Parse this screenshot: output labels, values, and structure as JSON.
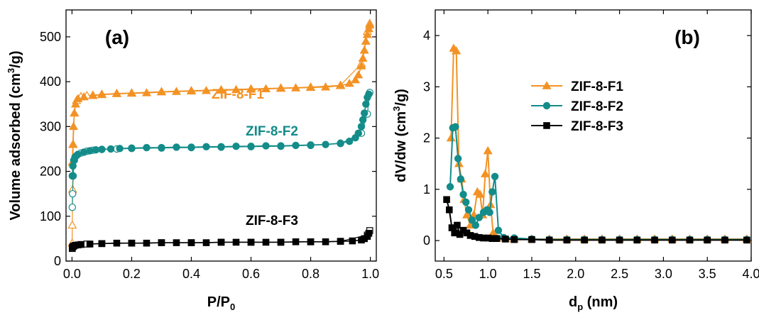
{
  "chart_data": [
    {
      "type": "scatter",
      "panel_label": "(a)",
      "xlabel": "P/P₀",
      "ylabel": "Volume adsorbed (cm³/g)",
      "xlim": [
        -0.02,
        1.02
      ],
      "ylim": [
        0,
        560
      ],
      "xticks": [
        "0.0",
        "0.2",
        "0.4",
        "0.6",
        "0.8",
        "1.0"
      ],
      "xtick_values": [
        0,
        0.2,
        0.4,
        0.6,
        0.8,
        1.0
      ],
      "yticks": [
        "0",
        "100",
        "200",
        "300",
        "400",
        "500"
      ],
      "ytick_values": [
        0,
        100,
        200,
        300,
        400,
        500
      ],
      "grid": false,
      "series": [
        {
          "name": "ZIF-8-F1",
          "color": "#F39224",
          "marker": "triangle",
          "adsorption": [
            [
              0.001,
              220
            ],
            [
              0.003,
              260
            ],
            [
              0.005,
              300
            ],
            [
              0.008,
              330
            ],
            [
              0.012,
              350
            ],
            [
              0.02,
              362
            ],
            [
              0.04,
              366
            ],
            [
              0.07,
              369
            ],
            [
              0.1,
              371
            ],
            [
              0.15,
              373
            ],
            [
              0.2,
              374
            ],
            [
              0.25,
              375
            ],
            [
              0.3,
              377
            ],
            [
              0.35,
              378
            ],
            [
              0.4,
              379
            ],
            [
              0.45,
              380
            ],
            [
              0.5,
              381
            ],
            [
              0.55,
              382
            ],
            [
              0.6,
              383
            ],
            [
              0.65,
              384
            ],
            [
              0.7,
              385
            ],
            [
              0.75,
              386
            ],
            [
              0.8,
              387
            ],
            [
              0.85,
              388
            ],
            [
              0.9,
              391
            ],
            [
              0.93,
              396
            ],
            [
              0.95,
              404
            ],
            [
              0.96,
              415
            ],
            [
              0.97,
              435
            ],
            [
              0.975,
              452
            ],
            [
              0.98,
              470
            ],
            [
              0.985,
              490
            ],
            [
              0.99,
              505
            ],
            [
              0.995,
              518
            ],
            [
              0.998,
              526
            ]
          ],
          "desorption": [
            [
              0.998,
              530
            ],
            [
              0.99,
              512
            ],
            [
              0.97,
              440
            ],
            [
              0.9,
              392
            ],
            [
              0.8,
              388
            ],
            [
              0.7,
              386
            ],
            [
              0.6,
              384
            ],
            [
              0.5,
              382
            ],
            [
              0.4,
              380
            ],
            [
              0.3,
              378
            ],
            [
              0.2,
              375
            ],
            [
              0.15,
              374
            ],
            [
              0.1,
              372
            ],
            [
              0.07,
              370
            ],
            [
              0.05,
              369
            ],
            [
              0.03,
              367
            ],
            [
              0.015,
              358
            ],
            [
              0.008,
              330
            ],
            [
              0.004,
              260
            ],
            [
              0.002,
              160
            ],
            [
              0.001,
              80
            ],
            [
              0.0005,
              40
            ]
          ]
        },
        {
          "name": "ZIF-8-F2",
          "color": "#138C8A",
          "marker": "circle",
          "adsorption": [
            [
              0.001,
              190
            ],
            [
              0.003,
              212
            ],
            [
              0.006,
              225
            ],
            [
              0.01,
              232
            ],
            [
              0.02,
              238
            ],
            [
              0.04,
              243
            ],
            [
              0.06,
              246
            ],
            [
              0.08,
              248
            ],
            [
              0.1,
              249
            ],
            [
              0.13,
              250
            ],
            [
              0.16,
              251
            ],
            [
              0.2,
              252
            ],
            [
              0.25,
              253
            ],
            [
              0.3,
              253
            ],
            [
              0.35,
              254
            ],
            [
              0.4,
              254
            ],
            [
              0.45,
              255
            ],
            [
              0.5,
              255
            ],
            [
              0.55,
              256
            ],
            [
              0.6,
              256
            ],
            [
              0.65,
              257
            ],
            [
              0.7,
              257
            ],
            [
              0.75,
              258
            ],
            [
              0.8,
              259
            ],
            [
              0.85,
              260
            ],
            [
              0.9,
              263
            ],
            [
              0.93,
              267
            ],
            [
              0.95,
              275
            ],
            [
              0.96,
              285
            ],
            [
              0.97,
              300
            ],
            [
              0.975,
              315
            ],
            [
              0.98,
              330
            ],
            [
              0.985,
              350
            ],
            [
              0.99,
              365
            ],
            [
              0.995,
              372
            ]
          ],
          "desorption": [
            [
              0.998,
              376
            ],
            [
              0.99,
              328
            ],
            [
              0.97,
              285
            ],
            [
              0.9,
              262
            ],
            [
              0.8,
              258
            ],
            [
              0.7,
              256
            ],
            [
              0.6,
              255
            ],
            [
              0.5,
              254
            ],
            [
              0.4,
              253
            ],
            [
              0.3,
              252
            ],
            [
              0.2,
              251
            ],
            [
              0.15,
              250
            ],
            [
              0.1,
              249
            ],
            [
              0.07,
              247
            ],
            [
              0.05,
              245
            ],
            [
              0.03,
              241
            ],
            [
              0.015,
              235
            ],
            [
              0.008,
              225
            ],
            [
              0.004,
              190
            ],
            [
              0.002,
              150
            ],
            [
              0.001,
              120
            ]
          ]
        },
        {
          "name": "ZIF-8-F3",
          "color": "#000000",
          "marker": "square",
          "adsorption": [
            [
              0.001,
              30
            ],
            [
              0.004,
              33
            ],
            [
              0.01,
              35
            ],
            [
              0.03,
              37
            ],
            [
              0.06,
              38
            ],
            [
              0.1,
              39
            ],
            [
              0.15,
              40
            ],
            [
              0.2,
              40
            ],
            [
              0.25,
              40
            ],
            [
              0.3,
              41
            ],
            [
              0.35,
              41
            ],
            [
              0.4,
              41
            ],
            [
              0.45,
              41
            ],
            [
              0.5,
              42
            ],
            [
              0.55,
              42
            ],
            [
              0.6,
              42
            ],
            [
              0.65,
              42
            ],
            [
              0.7,
              42
            ],
            [
              0.75,
              43
            ],
            [
              0.8,
              43
            ],
            [
              0.85,
              43
            ],
            [
              0.9,
              44
            ],
            [
              0.94,
              45
            ],
            [
              0.97,
              47
            ],
            [
              0.98,
              50
            ],
            [
              0.99,
              55
            ],
            [
              0.995,
              62
            ]
          ],
          "desorption": [
            [
              0.998,
              68
            ],
            [
              0.99,
              58
            ],
            [
              0.9,
              44
            ],
            [
              0.8,
              43
            ],
            [
              0.7,
              42
            ],
            [
              0.6,
              42
            ],
            [
              0.5,
              42
            ],
            [
              0.4,
              41
            ],
            [
              0.3,
              41
            ],
            [
              0.2,
              40
            ],
            [
              0.1,
              39
            ],
            [
              0.05,
              38
            ],
            [
              0.02,
              36
            ],
            [
              0.005,
              33
            ],
            [
              0.001,
              28
            ]
          ]
        }
      ],
      "annotations": [
        {
          "text": "ZIF-8-F1",
          "x": 0.34,
          "y": 400,
          "color": "#F39224"
        },
        {
          "text": "ZIF-8-F2",
          "x": 0.4,
          "y": 280,
          "color": "#138C8A"
        },
        {
          "text": "ZIF-8-F3",
          "x": 0.67,
          "y": 78,
          "color": "#000000"
        }
      ]
    },
    {
      "type": "line",
      "panel_label": "(b)",
      "xlabel": "d_p (nm)",
      "ylabel": "dV/dw (cm³/g)",
      "xlim": [
        0.4,
        4.0
      ],
      "ylim": [
        -0.4,
        4.5
      ],
      "xticks": [
        "0.5",
        "1.0",
        "1.5",
        "2.0",
        "2.5",
        "3.0",
        "3.5",
        "4.0"
      ],
      "xtick_values": [
        0.5,
        1.0,
        1.5,
        2.0,
        2.5,
        3.0,
        3.5,
        4.0
      ],
      "yticks": [
        "0",
        "1",
        "2",
        "3",
        "4"
      ],
      "ytick_values": [
        0,
        1,
        2,
        3,
        4
      ],
      "grid": false,
      "legend_position": "center-right",
      "series": [
        {
          "name": "ZIF-8-F1",
          "color": "#F39224",
          "marker": "triangle",
          "points": [
            [
              0.58,
              2.0
            ],
            [
              0.61,
              3.75
            ],
            [
              0.64,
              3.7
            ],
            [
              0.67,
              1.5
            ],
            [
              0.7,
              1.2
            ],
            [
              0.73,
              0.8
            ],
            [
              0.76,
              0.5
            ],
            [
              0.8,
              0.3
            ],
            [
              0.84,
              0.5
            ],
            [
              0.88,
              0.95
            ],
            [
              0.91,
              0.9
            ],
            [
              0.94,
              0.5
            ],
            [
              0.97,
              1.3
            ],
            [
              1.0,
              1.75
            ],
            [
              1.03,
              0.7
            ],
            [
              1.06,
              0.15
            ],
            [
              1.1,
              0.05
            ],
            [
              1.2,
              0.04
            ],
            [
              1.3,
              0.03
            ],
            [
              1.5,
              0.03
            ],
            [
              1.7,
              0.03
            ],
            [
              1.9,
              0.03
            ],
            [
              2.1,
              0.03
            ],
            [
              2.3,
              0.03
            ],
            [
              2.5,
              0.03
            ],
            [
              2.7,
              0.03
            ],
            [
              2.9,
              0.03
            ],
            [
              3.1,
              0.03
            ],
            [
              3.3,
              0.03
            ],
            [
              3.5,
              0.03
            ],
            [
              3.7,
              0.03
            ],
            [
              3.95,
              0.03
            ]
          ]
        },
        {
          "name": "ZIF-8-F2",
          "color": "#138C8A",
          "marker": "circle",
          "points": [
            [
              0.57,
              1.05
            ],
            [
              0.6,
              2.2
            ],
            [
              0.63,
              2.22
            ],
            [
              0.66,
              1.6
            ],
            [
              0.69,
              1.2
            ],
            [
              0.72,
              0.9
            ],
            [
              0.75,
              0.75
            ],
            [
              0.78,
              0.6
            ],
            [
              0.82,
              0.4
            ],
            [
              0.86,
              0.3
            ],
            [
              0.9,
              0.45
            ],
            [
              0.95,
              0.55
            ],
            [
              0.99,
              0.6
            ],
            [
              1.02,
              0.55
            ],
            [
              1.05,
              0.95
            ],
            [
              1.08,
              1.25
            ],
            [
              1.12,
              0.2
            ],
            [
              1.18,
              0.06
            ],
            [
              1.3,
              0.05
            ],
            [
              1.5,
              0.03
            ],
            [
              1.7,
              0.02
            ],
            [
              1.9,
              0.02
            ],
            [
              2.1,
              0.02
            ],
            [
              2.3,
              0.02
            ],
            [
              2.5,
              0.02
            ],
            [
              2.7,
              0.02
            ],
            [
              2.9,
              0.02
            ],
            [
              3.1,
              0.02
            ],
            [
              3.3,
              0.02
            ],
            [
              3.5,
              0.02
            ],
            [
              3.7,
              0.02
            ],
            [
              3.95,
              0.02
            ]
          ]
        },
        {
          "name": "ZIF-8-F3",
          "color": "#000000",
          "marker": "square",
          "points": [
            [
              0.53,
              0.8
            ],
            [
              0.56,
              0.6
            ],
            [
              0.59,
              0.25
            ],
            [
              0.62,
              0.15
            ],
            [
              0.65,
              0.3
            ],
            [
              0.68,
              0.12
            ],
            [
              0.72,
              0.2
            ],
            [
              0.76,
              0.15
            ],
            [
              0.8,
              0.1
            ],
            [
              0.85,
              0.08
            ],
            [
              0.9,
              0.06
            ],
            [
              0.95,
              0.05
            ],
            [
              1.0,
              0.05
            ],
            [
              1.05,
              0.04
            ],
            [
              1.1,
              0.04
            ],
            [
              1.2,
              0.03
            ],
            [
              1.3,
              0.02
            ],
            [
              1.5,
              0.02
            ],
            [
              1.7,
              0.01
            ],
            [
              1.9,
              0.01
            ],
            [
              2.1,
              0.01
            ],
            [
              2.3,
              0.01
            ],
            [
              2.5,
              0.01
            ],
            [
              2.7,
              0.01
            ],
            [
              2.9,
              0.01
            ],
            [
              3.1,
              0.01
            ],
            [
              3.3,
              0.01
            ],
            [
              3.5,
              0.01
            ],
            [
              3.7,
              0.01
            ],
            [
              3.95,
              0.01
            ]
          ]
        }
      ]
    }
  ]
}
